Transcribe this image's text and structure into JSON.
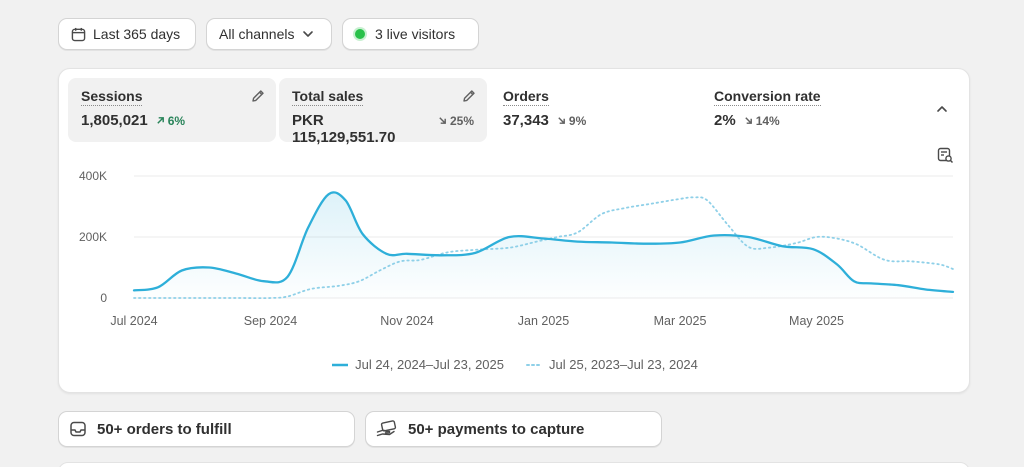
{
  "filters": {
    "date_range": "Last 365 days",
    "channels": "All channels",
    "live_visitors": "3 live visitors"
  },
  "metrics": [
    {
      "label": "Sessions",
      "value": "1,805,021",
      "change": "6%",
      "direction": "up",
      "active": true
    },
    {
      "label": "Total sales",
      "value": "PKR 115,129,551.70",
      "change": "25%",
      "direction": "down",
      "active": true
    },
    {
      "label": "Orders",
      "value": "37,343",
      "change": "9%",
      "direction": "down",
      "active": false
    },
    {
      "label": "Conversion rate",
      "value": "2%",
      "change": "14%",
      "direction": "down",
      "active": false
    }
  ],
  "chart_data": {
    "type": "line",
    "y_tick_labels": [
      "0",
      "200K",
      "400K"
    ],
    "ylim": [
      0,
      400000
    ],
    "x_tick_labels": [
      "Jul 2024",
      "Sep 2024",
      "Nov 2024",
      "Jan 2025",
      "Mar 2025",
      "May 2025"
    ],
    "x_tick_index": [
      0,
      2,
      4,
      6,
      8,
      10
    ],
    "xlim": [
      0,
      12
    ],
    "grid": true,
    "legend_position": "bottom-center",
    "series": [
      {
        "name": "Jul 24, 2024–Jul 23, 2025",
        "style": "solid",
        "color": "#2eafd9",
        "x": [
          0,
          0.35,
          0.7,
          1.1,
          1.5,
          1.9,
          2.25,
          2.55,
          2.85,
          3.1,
          3.35,
          3.7,
          4.0,
          4.5,
          5.0,
          5.5,
          6.0,
          6.5,
          7.0,
          7.5,
          8.0,
          8.5,
          9.0,
          9.5,
          9.95,
          10.3,
          10.55,
          10.8,
          11.2,
          11.6,
          12.0
        ],
        "y": [
          25000,
          35000,
          90000,
          100000,
          80000,
          55000,
          70000,
          230000,
          340000,
          320000,
          210000,
          145000,
          145000,
          140000,
          148000,
          200000,
          195000,
          185000,
          182000,
          178000,
          182000,
          205000,
          200000,
          170000,
          160000,
          110000,
          55000,
          48000,
          42000,
          28000,
          20000
        ]
      },
      {
        "name": "Jul 25, 2023–Jul 23, 2024",
        "style": "dotted",
        "color": "#8fd0e8",
        "x": [
          0,
          0.5,
          1.0,
          1.5,
          2.0,
          2.25,
          2.6,
          3.0,
          3.3,
          3.6,
          3.9,
          4.2,
          4.6,
          5.0,
          5.5,
          5.9,
          6.2,
          6.5,
          6.85,
          7.2,
          7.6,
          8.0,
          8.2,
          8.4,
          8.7,
          9.0,
          9.3,
          9.7,
          10.0,
          10.3,
          10.6,
          11.0,
          11.4,
          11.8,
          12.0
        ],
        "y": [
          0,
          0,
          0,
          0,
          0,
          5000,
          30000,
          40000,
          55000,
          90000,
          120000,
          125000,
          150000,
          158000,
          165000,
          185000,
          200000,
          215000,
          275000,
          295000,
          310000,
          325000,
          330000,
          320000,
          240000,
          168000,
          165000,
          180000,
          200000,
          195000,
          175000,
          125000,
          120000,
          110000,
          95000
        ]
      }
    ]
  },
  "tasks": [
    {
      "label": "50+ orders to fulfill",
      "icon": "inbox-icon"
    },
    {
      "label": "50+ payments to capture",
      "icon": "payment-hand-icon"
    }
  ],
  "colors": {
    "accent": "#2eafd9",
    "previous": "#8fd0e8",
    "live": "#29c14a",
    "positive": "#29845a"
  }
}
